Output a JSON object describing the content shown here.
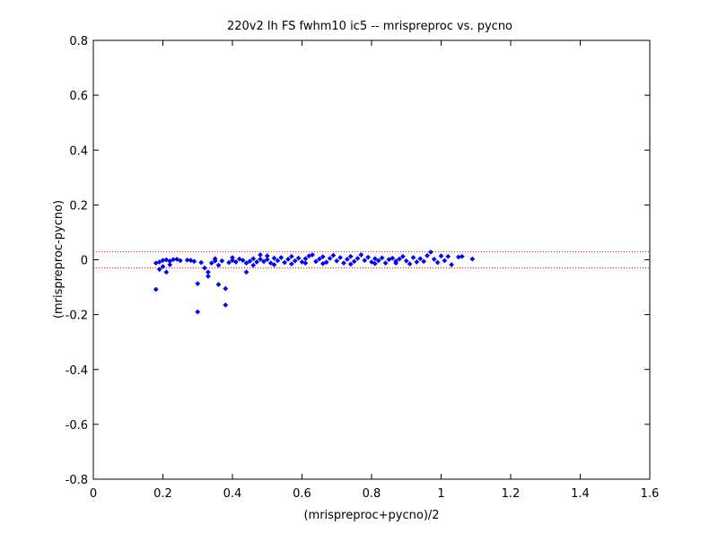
{
  "chart_data": {
    "type": "scatter",
    "title": "220v2 lh FS fwhm10 ic5 -- mrispreproc vs. pycno",
    "xlabel": "(mrispreproc+pycno)/2",
    "ylabel": "(mrispreproc-pycno)",
    "xlim": [
      0,
      1.6
    ],
    "ylim": [
      -0.8,
      0.8
    ],
    "xticks": [
      0,
      0.2,
      0.4,
      0.6,
      0.8,
      1,
      1.2,
      1.4,
      1.6
    ],
    "yticks": [
      -0.8,
      -0.6,
      -0.4,
      -0.2,
      0,
      0.2,
      0.4,
      0.6,
      0.8
    ],
    "xtick_labels": [
      "0",
      "0.2",
      "0.4",
      "0.6",
      "0.8",
      "1",
      "1.2",
      "1.4",
      "1.6"
    ],
    "ytick_labels": [
      "-0.8",
      "-0.6",
      "-0.4",
      "-0.2",
      "0",
      "0.2",
      "0.4",
      "0.6",
      "0.8"
    ],
    "grid": false,
    "reference_lines": [
      {
        "y": 0.03,
        "style": "dotted",
        "color": "#ff0000"
      },
      {
        "y": -0.03,
        "style": "dotted",
        "color": "#ff0000"
      }
    ],
    "marker_color": "#0000ff",
    "marker": "diamond",
    "series": [
      {
        "points": [
          [
            0.18,
            -0.012
          ],
          [
            0.19,
            -0.035
          ],
          [
            0.2,
            -0.025
          ],
          [
            0.21,
            -0.045
          ],
          [
            0.19,
            -0.008
          ],
          [
            0.2,
            -0.002
          ],
          [
            0.21,
            0.0
          ],
          [
            0.22,
            -0.005
          ],
          [
            0.23,
            0.001
          ],
          [
            0.24,
            0.002
          ],
          [
            0.22,
            -0.018
          ],
          [
            0.25,
            -0.003
          ],
          [
            0.18,
            -0.108
          ],
          [
            0.28,
            -0.002
          ],
          [
            0.29,
            -0.006
          ],
          [
            0.3,
            -0.087
          ],
          [
            0.3,
            -0.19
          ],
          [
            0.31,
            -0.01
          ],
          [
            0.32,
            -0.03
          ],
          [
            0.33,
            -0.045
          ],
          [
            0.33,
            -0.06
          ],
          [
            0.34,
            -0.012
          ],
          [
            0.35,
            -0.004
          ],
          [
            0.36,
            -0.02
          ],
          [
            0.36,
            -0.09
          ],
          [
            0.37,
            -0.004
          ],
          [
            0.38,
            -0.165
          ],
          [
            0.38,
            -0.105
          ],
          [
            0.39,
            -0.01
          ],
          [
            0.4,
            -0.002
          ],
          [
            0.41,
            -0.008
          ],
          [
            0.42,
            0.003
          ],
          [
            0.43,
            -0.002
          ],
          [
            0.44,
            -0.012
          ],
          [
            0.44,
            -0.045
          ],
          [
            0.45,
            -0.005
          ],
          [
            0.46,
            0.004
          ],
          [
            0.47,
            -0.008
          ],
          [
            0.48,
            0.002
          ],
          [
            0.48,
            0.018
          ],
          [
            0.49,
            -0.006
          ],
          [
            0.5,
            0.001
          ],
          [
            0.51,
            -0.012
          ],
          [
            0.52,
            0.006
          ],
          [
            0.53,
            -0.003
          ],
          [
            0.54,
            0.008
          ],
          [
            0.55,
            -0.01
          ],
          [
            0.56,
            0.002
          ],
          [
            0.57,
            0.012
          ],
          [
            0.58,
            -0.004
          ],
          [
            0.59,
            0.006
          ],
          [
            0.6,
            -0.008
          ],
          [
            0.61,
            0.004
          ],
          [
            0.62,
            0.014
          ],
          [
            0.63,
            0.018
          ],
          [
            0.64,
            -0.006
          ],
          [
            0.65,
            0.003
          ],
          [
            0.66,
            0.011
          ],
          [
            0.67,
            -0.009
          ],
          [
            0.68,
            0.005
          ],
          [
            0.69,
            0.016
          ],
          [
            0.7,
            -0.004
          ],
          [
            0.71,
            0.008
          ],
          [
            0.72,
            -0.012
          ],
          [
            0.73,
            0.002
          ],
          [
            0.74,
            0.012
          ],
          [
            0.75,
            -0.006
          ],
          [
            0.76,
            0.005
          ],
          [
            0.77,
            0.018
          ],
          [
            0.78,
            -0.002
          ],
          [
            0.79,
            0.009
          ],
          [
            0.8,
            -0.008
          ],
          [
            0.81,
            0.004
          ],
          [
            0.82,
            -0.003
          ],
          [
            0.83,
            0.007
          ],
          [
            0.84,
            -0.012
          ],
          [
            0.85,
            0.001
          ],
          [
            0.86,
            0.006
          ],
          [
            0.87,
            -0.005
          ],
          [
            0.88,
            0.003
          ],
          [
            0.89,
            0.012
          ],
          [
            0.9,
            -0.004
          ],
          [
            0.91,
            -0.015
          ],
          [
            0.92,
            0.008
          ],
          [
            0.93,
            -0.008
          ],
          [
            0.94,
            0.004
          ],
          [
            0.95,
            -0.006
          ],
          [
            0.96,
            0.015
          ],
          [
            0.97,
            0.028
          ],
          [
            0.98,
            0.002
          ],
          [
            0.99,
            -0.01
          ],
          [
            1.0,
            0.014
          ],
          [
            1.01,
            -0.003
          ],
          [
            1.02,
            0.012
          ],
          [
            1.03,
            -0.018
          ],
          [
            1.05,
            0.01
          ],
          [
            1.06,
            0.012
          ],
          [
            1.09,
            0.003
          ],
          [
            0.27,
            -0.001
          ],
          [
            0.46,
            -0.02
          ],
          [
            0.52,
            -0.018
          ],
          [
            0.57,
            -0.015
          ],
          [
            0.61,
            -0.012
          ],
          [
            0.66,
            -0.014
          ],
          [
            0.74,
            -0.016
          ],
          [
            0.81,
            -0.014
          ],
          [
            0.87,
            -0.012
          ],
          [
            0.35,
            0.004
          ],
          [
            0.4,
            0.008
          ],
          [
            0.5,
            0.014
          ]
        ]
      }
    ]
  }
}
